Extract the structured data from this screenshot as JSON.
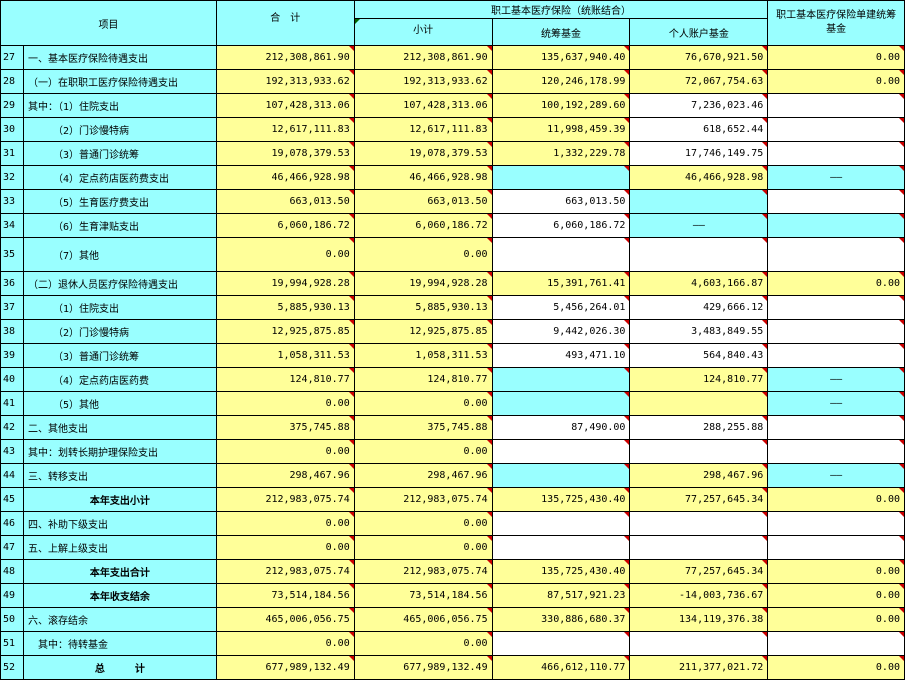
{
  "header": {
    "item": "项目",
    "total": "合　计",
    "group": "职工基本医疗保险（统账结合）",
    "subtotal": "小计",
    "pooled": "统筹基金",
    "personal": "个人账户基金",
    "separate": "职工基本医疗保险单建统筹基金"
  },
  "rows": [
    {
      "no": "27",
      "label": "一、基本医疗保险待遇支出",
      "total": "212,308,861.90",
      "sub": "212,308,861.90",
      "pool": "135,637,940.40",
      "pers": "76,670,921.50",
      "sep": "0.00"
    },
    {
      "no": "28",
      "label": "（一）在职职工医疗保险待遇支出",
      "total": "192,313,933.62",
      "sub": "192,313,933.62",
      "pool": "120,246,178.99",
      "pers": "72,067,754.63",
      "sep": "0.00"
    },
    {
      "no": "29",
      "label": "其中：（1）住院支出",
      "total": "107,428,313.06",
      "sub": "107,428,313.06",
      "pool": "100,192,289.60",
      "pers": "7,236,023.46",
      "sep": ""
    },
    {
      "no": "30",
      "label": "　　　（2）门诊慢特病",
      "total": "12,617,111.83",
      "sub": "12,617,111.83",
      "pool": "11,998,459.39",
      "pers": "618,652.44",
      "sep": ""
    },
    {
      "no": "31",
      "label": "　　　（3）普通门诊统筹",
      "total": "19,078,379.53",
      "sub": "19,078,379.53",
      "pool": "1,332,229.78",
      "pers": "17,746,149.75",
      "sep": ""
    },
    {
      "no": "32",
      "label": "　　　（4）定点药店医药费支出",
      "total": "46,466,928.98",
      "sub": "46,466,928.98",
      "pool": "",
      "pers": "46,466,928.98",
      "sep": "——"
    },
    {
      "no": "33",
      "label": "　　　（5）生育医疗费支出",
      "total": "663,013.50",
      "sub": "663,013.50",
      "pool": "663,013.50",
      "pers": "",
      "sep": ""
    },
    {
      "no": "34",
      "label": "　　　（6）生育津贴支出",
      "total": "6,060,186.72",
      "sub": "6,060,186.72",
      "pool": "6,060,186.72",
      "pers": "——",
      "sep": ""
    },
    {
      "no": "35",
      "label": "　　　（7）其他",
      "total": "0.00",
      "sub": "0.00",
      "pool": "",
      "pers": "",
      "sep": ""
    },
    {
      "no": "36",
      "label": "（二）退休人员医疗保险待遇支出",
      "total": "19,994,928.28",
      "sub": "19,994,928.28",
      "pool": "15,391,761.41",
      "pers": "4,603,166.87",
      "sep": "0.00"
    },
    {
      "no": "37",
      "label": "　　　（1）住院支出",
      "total": "5,885,930.13",
      "sub": "5,885,930.13",
      "pool": "5,456,264.01",
      "pers": "429,666.12",
      "sep": ""
    },
    {
      "no": "38",
      "label": "　　　（2）门诊慢特病",
      "total": "12,925,875.85",
      "sub": "12,925,875.85",
      "pool": "9,442,026.30",
      "pers": "3,483,849.55",
      "sep": ""
    },
    {
      "no": "39",
      "label": "　　　（3）普通门诊统筹",
      "total": "1,058,311.53",
      "sub": "1,058,311.53",
      "pool": "493,471.10",
      "pers": "564,840.43",
      "sep": ""
    },
    {
      "no": "40",
      "label": "　　　（4）定点药店医药费",
      "total": "124,810.77",
      "sub": "124,810.77",
      "pool": "",
      "pers": "124,810.77",
      "sep": "——"
    },
    {
      "no": "41",
      "label": "　　　（5）其他",
      "total": "0.00",
      "sub": "0.00",
      "pool": "",
      "pers": "",
      "sep": "——"
    },
    {
      "no": "42",
      "label": "二、其他支出",
      "total": "375,745.88",
      "sub": "375,745.88",
      "pool": "87,490.00",
      "pers": "288,255.88",
      "sep": ""
    },
    {
      "no": "43",
      "label": "其中：划转长期护理保险支出",
      "total": "0.00",
      "sub": "0.00",
      "pool": "",
      "pers": "",
      "sep": ""
    },
    {
      "no": "44",
      "label": "三、转移支出",
      "total": "298,467.96",
      "sub": "298,467.96",
      "pool": "",
      "pers": "298,467.96",
      "sep": "——"
    },
    {
      "no": "45",
      "label": "本年支出小计",
      "total": "212,983,075.74",
      "sub": "212,983,075.74",
      "pool": "135,725,430.40",
      "pers": "77,257,645.34",
      "sep": "0.00"
    },
    {
      "no": "46",
      "label": "四、补助下级支出",
      "total": "0.00",
      "sub": "0.00",
      "pool": "",
      "pers": "",
      "sep": ""
    },
    {
      "no": "47",
      "label": "五、上解上级支出",
      "total": "0.00",
      "sub": "0.00",
      "pool": "",
      "pers": "",
      "sep": ""
    },
    {
      "no": "48",
      "label": "本年支出合计",
      "total": "212,983,075.74",
      "sub": "212,983,075.74",
      "pool": "135,725,430.40",
      "pers": "77,257,645.34",
      "sep": "0.00"
    },
    {
      "no": "49",
      "label": "本年收支结余",
      "total": "73,514,184.56",
      "sub": "73,514,184.56",
      "pool": "87,517,921.23",
      "pers": "-14,003,736.67",
      "sep": "0.00"
    },
    {
      "no": "50",
      "label": "六、滚存结余",
      "total": "465,006,056.75",
      "sub": "465,006,056.75",
      "pool": "330,886,680.37",
      "pers": "134,119,376.38",
      "sep": "0.00"
    },
    {
      "no": "51",
      "label": "　其中：待转基金",
      "total": "0.00",
      "sub": "0.00",
      "pool": "",
      "pers": "",
      "sep": ""
    },
    {
      "no": "52",
      "label": "总　　　计",
      "total": "677,989,132.49",
      "sub": "677,989,132.49",
      "pool": "466,612,110.77",
      "pers": "211,377,021.72",
      "sep": "0.00"
    }
  ],
  "colors": {
    "cyan": "#99ffff",
    "yellow": "#ffff99",
    "white": "#ffffff",
    "mark": "#cc0000"
  }
}
